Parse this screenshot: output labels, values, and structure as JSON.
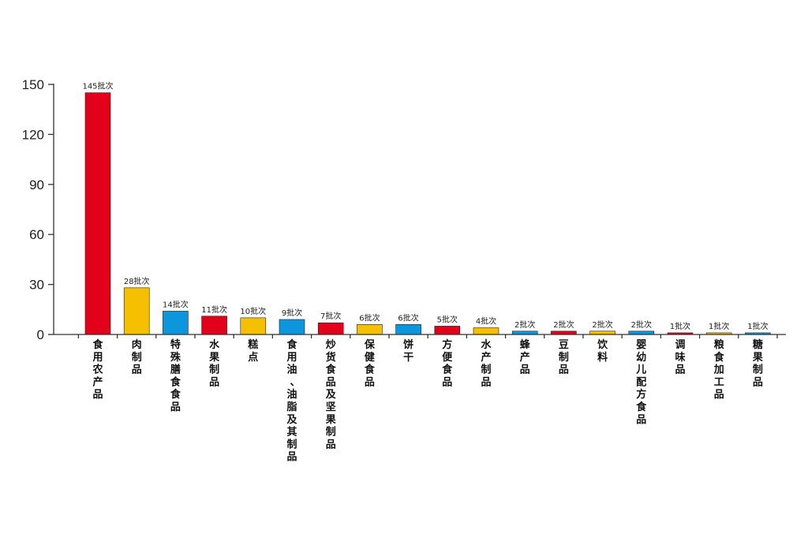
{
  "chart_data": {
    "type": "bar",
    "title": "",
    "xlabel": "",
    "ylabel": "",
    "ylim": [
      0,
      150
    ],
    "yticks": [
      0,
      30,
      60,
      90,
      120,
      150
    ],
    "grid": false,
    "value_suffix": "批次",
    "categories": [
      "食用农产品",
      "肉制品",
      "特殊膳食食品",
      "水果制品",
      "糕点",
      "食用油、油脂及其制品",
      "炒货食品及坚果制品",
      "保健食品",
      "饼干",
      "方便食品",
      "水产制品",
      "蜂产品",
      "豆制品",
      "饮料",
      "婴幼儿配方食品",
      "调味品",
      "粮食加工品",
      "糖果制品"
    ],
    "values": [
      145,
      28,
      14,
      11,
      10,
      9,
      7,
      6,
      6,
      5,
      4,
      2,
      2,
      2,
      2,
      1,
      1,
      1
    ],
    "bar_colors": [
      "#e2001a",
      "#f5c000",
      "#0b96dd",
      "#e2001a",
      "#f5c000",
      "#0b96dd",
      "#e2001a",
      "#f5c000",
      "#0b96dd",
      "#e2001a",
      "#f5c000",
      "#0b96dd",
      "#e2001a",
      "#f5c000",
      "#0b96dd",
      "#e2001a",
      "#f5c000",
      "#0b96dd"
    ]
  }
}
